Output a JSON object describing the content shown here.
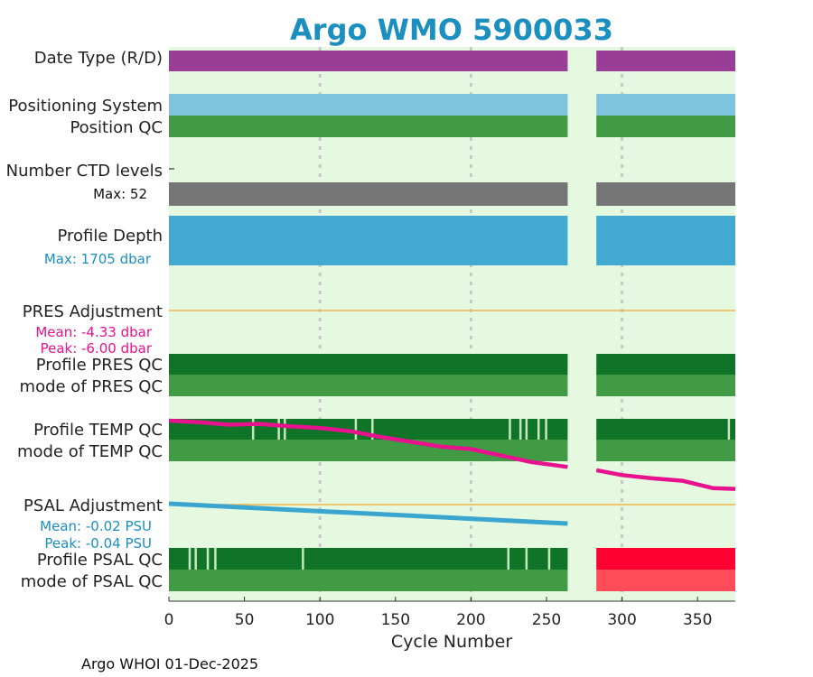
{
  "header": {
    "title": "Argo WMO 5900033",
    "footer": "Argo WHOI 01-Dec-2025"
  },
  "rows": {
    "date_type": "Date Type (R/D)",
    "positioning_system": "Positioning System",
    "position_qc": "Position QC",
    "number_ctd_levels": "Number CTD levels",
    "ctd_max": "Max: 52",
    "profile_depth": "Profile Depth",
    "depth_max": "Max: 1705 dbar",
    "pres_adjustment": "PRES Adjustment",
    "pres_mean": "Mean: -4.33 dbar",
    "pres_peak": "Peak: -6.00 dbar",
    "profile_pres_qc": "Profile PRES QC",
    "mode_pres_qc": "mode of PRES QC",
    "profile_temp_qc": "Profile TEMP QC",
    "mode_temp_qc": "mode of TEMP QC",
    "psal_adjustment": "PSAL Adjustment",
    "psal_mean": "Mean: -0.02 PSU",
    "psal_peak": "Peak: -0.04 PSU",
    "profile_psal_qc": "Profile PSAL QC",
    "mode_psal_qc": "mode of PSAL QC"
  },
  "colors": {
    "background": "#e5f8e0",
    "date_type": "#9a3d97",
    "positioning": "#7fc4de",
    "qc_good": "#419a44",
    "qc_dark": "#107428",
    "qc_bad": "#ff0033",
    "qc_bad_mode": "#ff4c58",
    "ctd": "#757575",
    "depth": "#42aad0",
    "adjustment_line": "#f2b64c",
    "temp_trace": "#e8118e",
    "psal_trace": "#3aa6d0",
    "pres_text": "#e8118e",
    "psal_text": "#1a8fc0",
    "grid": "#c8c8c8"
  },
  "chart_data": {
    "type": "bar",
    "xlabel": "Cycle Number",
    "xlim": [
      0,
      375
    ],
    "xticks": [
      0,
      50,
      100,
      150,
      200,
      250,
      300,
      350
    ],
    "grid_x": [
      100,
      200,
      300
    ],
    "cycle_segments": [
      [
        0,
        264
      ],
      [
        283,
        375
      ]
    ],
    "temp_adjustment_trace": [
      [
        0,
        0.0
      ],
      [
        20,
        0.02
      ],
      [
        40,
        0.05
      ],
      [
        60,
        0.04
      ],
      [
        80,
        0.07
      ],
      [
        100,
        0.09
      ],
      [
        120,
        0.13
      ],
      [
        140,
        0.2
      ],
      [
        160,
        0.26
      ],
      [
        180,
        0.32
      ],
      [
        200,
        0.35
      ],
      [
        220,
        0.43
      ],
      [
        240,
        0.51
      ],
      [
        264,
        0.57
      ],
      [
        283,
        0.61
      ],
      [
        300,
        0.67
      ],
      [
        320,
        0.71
      ],
      [
        340,
        0.74
      ],
      [
        360,
        0.83
      ],
      [
        375,
        0.84
      ]
    ],
    "psal_adjustment_trace": [
      [
        0,
        -0.004
      ],
      [
        264,
        -0.04
      ]
    ],
    "temp_qc_light_cycles": [
      55,
      72,
      76,
      123,
      134,
      225,
      232,
      236,
      244,
      249,
      370
    ],
    "psal_qc_light_cycles": [
      13,
      17,
      25,
      30,
      88,
      224,
      236,
      251
    ],
    "ctd_levels_max": 52,
    "profile_depth_max_dbar": 1705,
    "pres_adjustment": {
      "mean": -4.33,
      "peak": -6.0,
      "unit": "dbar"
    },
    "psal_adjustment": {
      "mean": -0.02,
      "peak": -0.04,
      "unit": "PSU"
    }
  }
}
